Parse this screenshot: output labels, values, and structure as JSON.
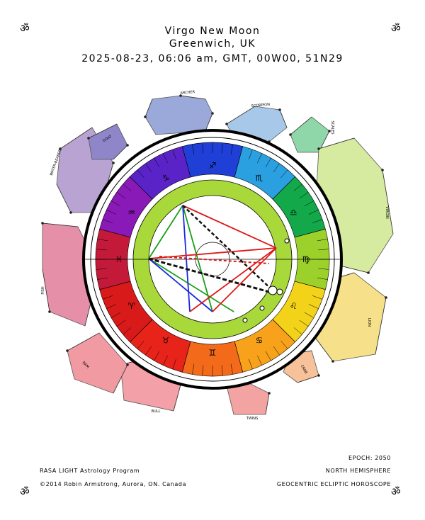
{
  "header": {
    "title": "Virgo New Moon",
    "location": "Greenwich, UK",
    "datetime_line": "2025-08-23, 06:06 am, GMT,  00W00, 51N29"
  },
  "corner_symbol": "ॐ",
  "footer": {
    "program": "RASA LIGHT Astrology Program",
    "copyright": "©2014 Robin Armstrong, Aurora, ON. Canada",
    "epoch": "EPOCH: 2050",
    "hemisphere": "NORTH HEMISPHERE",
    "horoscope_type": "GEOCENTRIC ECLIPTIC HOROSCOPE"
  },
  "constellations": [
    {
      "name": "ARCHER",
      "color": "#9aa9d9"
    },
    {
      "name": "SCORPION",
      "color": "#a7c8e8"
    },
    {
      "name": "SCALES",
      "color": "#8fd6a8"
    },
    {
      "name": "VIRGIN",
      "color": "#d6eaa0"
    },
    {
      "name": "LION",
      "color": "#f6e08a"
    },
    {
      "name": "CRAB",
      "color": "#f7c19a"
    },
    {
      "name": "TWINS",
      "color": "#f4a3a3"
    },
    {
      "name": "BULL",
      "color": "#f4a0a8"
    },
    {
      "name": "RAM",
      "color": "#f29aa2"
    },
    {
      "name": "FISH",
      "color": "#e68fa8"
    },
    {
      "name": "WATER-BEARER",
      "color": "#b9a3d3"
    },
    {
      "name": "GOAT",
      "color": "#8f86c9"
    }
  ],
  "zodiac_colors": [
    "#1f3fd6",
    "#2aa0e0",
    "#13a84a",
    "#9bd12a",
    "#f3d21a",
    "#f7a21a",
    "#f36a1a",
    "#e8231a",
    "#d81a1a",
    "#c41a3a",
    "#8a1ab8",
    "#5a23c8"
  ],
  "sign_glyphs": [
    "♐",
    "♏",
    "♎",
    "♍",
    "♌",
    "♋",
    "♊",
    "♉",
    "♈",
    "♓",
    "♒",
    "♑"
  ],
  "inner_ring_color": "#a8d83a",
  "aspect_colors": {
    "square": "#e01818",
    "trine": "#18a018",
    "sextile": "#1828e0",
    "opposition": "#111111"
  }
}
